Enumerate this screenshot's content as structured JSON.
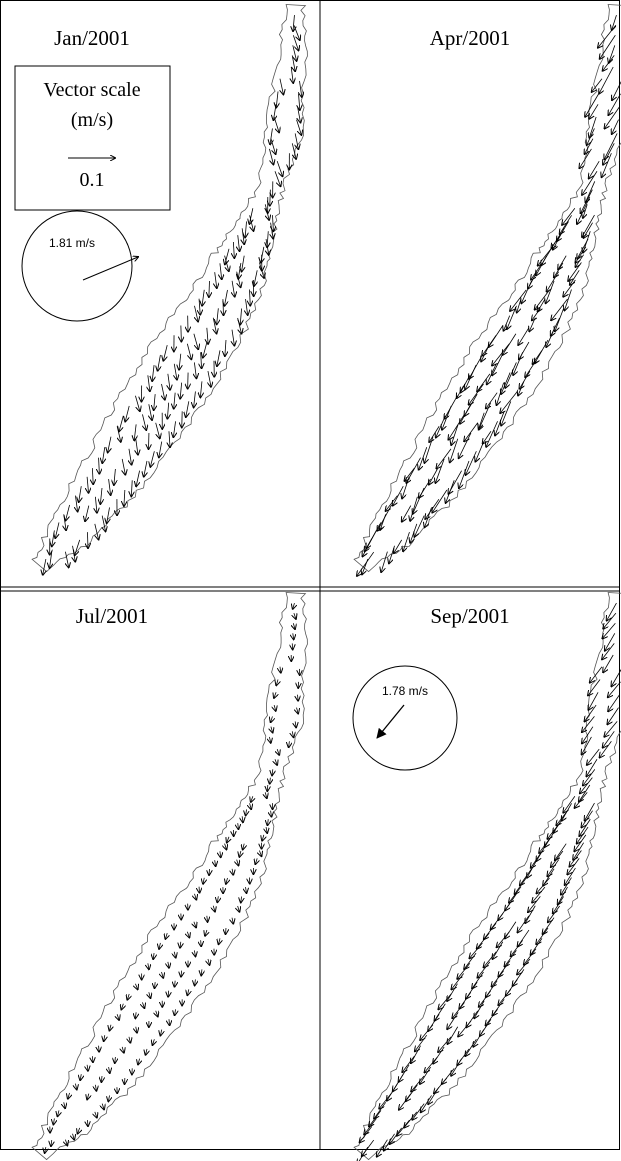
{
  "panels": [
    {
      "title": "Jan/2001"
    },
    {
      "title": "Apr/2001"
    },
    {
      "title": "Jul/2001"
    },
    {
      "title": "Sep/2001"
    }
  ],
  "vector_scale": {
    "title": "Vector scale",
    "unit": "(m/s)",
    "value": 0.1
  },
  "wind": [
    {
      "label": "1.81 m/s"
    },
    {
      "label": "1.78 m/s"
    }
  ]
}
